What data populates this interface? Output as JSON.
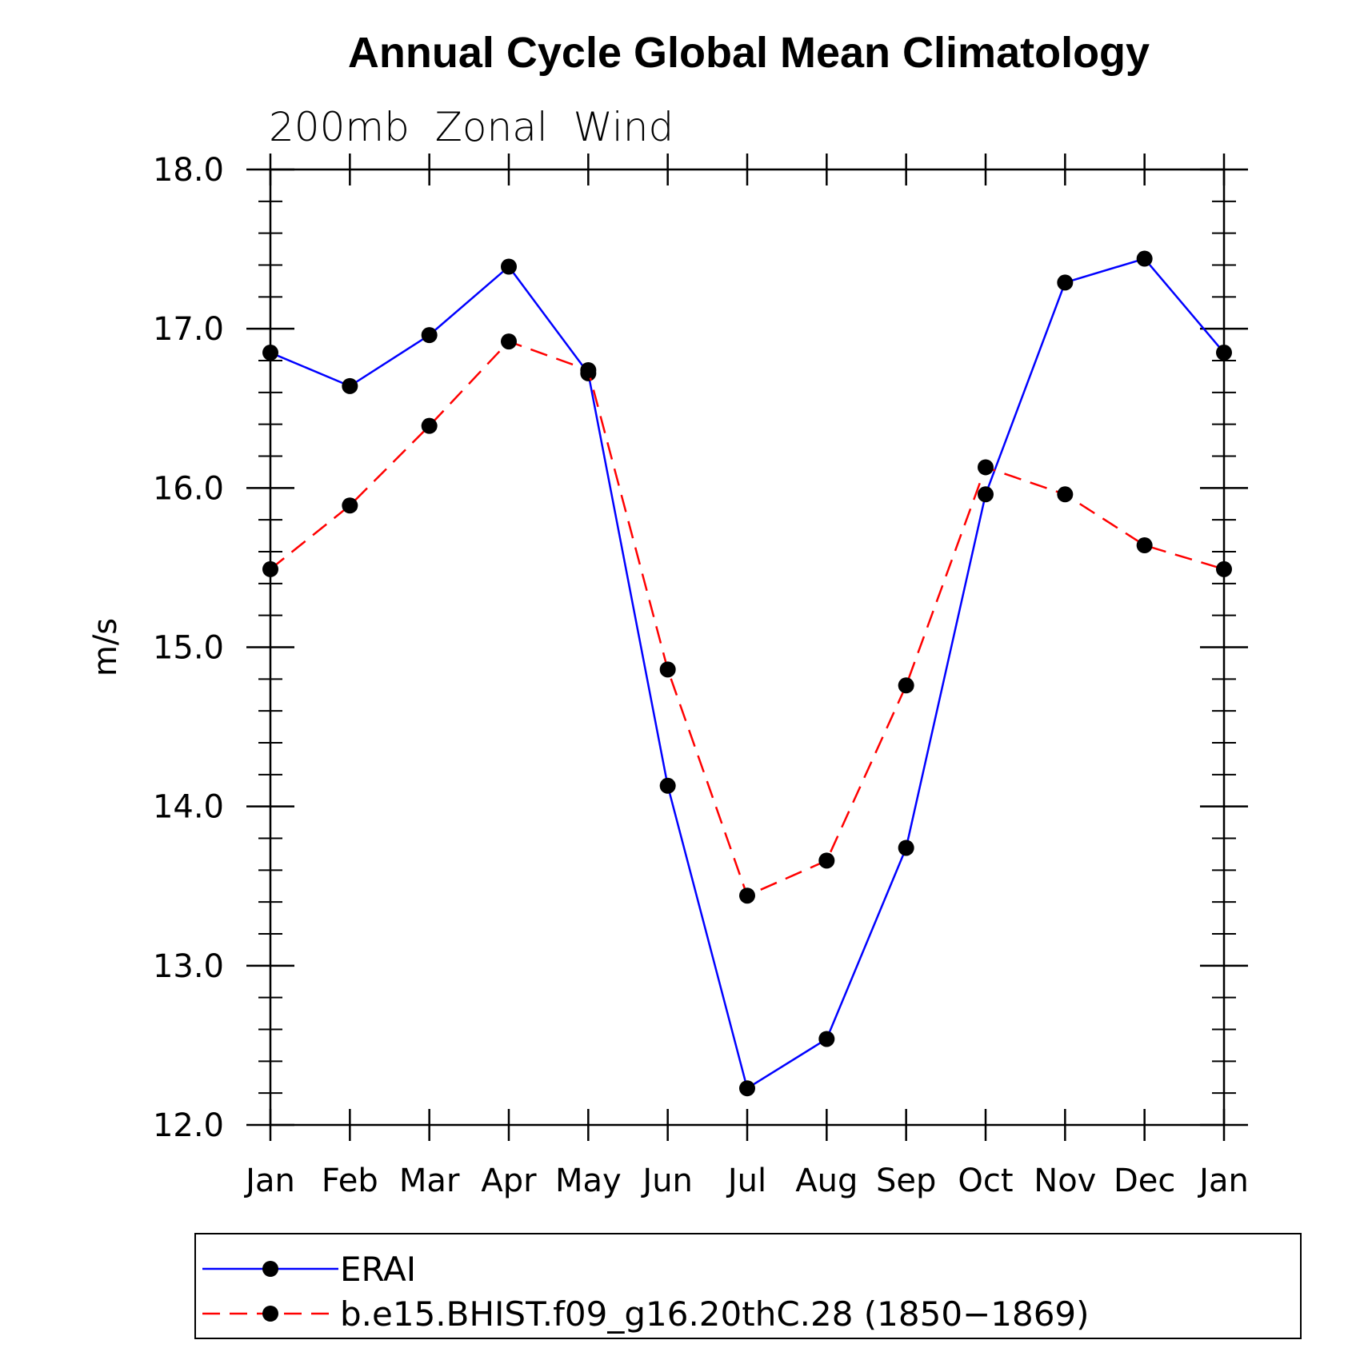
{
  "chart_data": {
    "type": "line",
    "title": "Annual Cycle Global Mean Climatology",
    "subtitle": "200mb  Zonal  Wind",
    "xlabel": "",
    "ylabel": "m/s",
    "categories": [
      "Jan",
      "Feb",
      "Mar",
      "Apr",
      "May",
      "Jun",
      "Jul",
      "Aug",
      "Sep",
      "Oct",
      "Nov",
      "Dec",
      "Jan"
    ],
    "ylim": [
      12.0,
      18.0
    ],
    "yticks": [
      "12.0",
      "13.0",
      "14.0",
      "15.0",
      "16.0",
      "17.0",
      "18.0"
    ],
    "grid": false,
    "legend_placement": "bottom",
    "series": [
      {
        "name": "ERAI",
        "color": "#0000ff",
        "dash": "solid",
        "marker": "filled-circle",
        "values": [
          16.85,
          16.64,
          16.96,
          17.39,
          16.72,
          14.13,
          12.23,
          12.54,
          13.74,
          15.96,
          17.29,
          17.44,
          16.85
        ]
      },
      {
        "name": "b.e15.BHIST.f09_g16.20thC.28 (1850−1869)",
        "color": "#ff0000",
        "dash": "dashed",
        "marker": "filled-circle",
        "values": [
          15.49,
          15.89,
          16.39,
          16.92,
          16.74,
          14.86,
          13.44,
          13.66,
          14.76,
          16.13,
          15.96,
          15.64,
          15.49
        ]
      }
    ]
  }
}
